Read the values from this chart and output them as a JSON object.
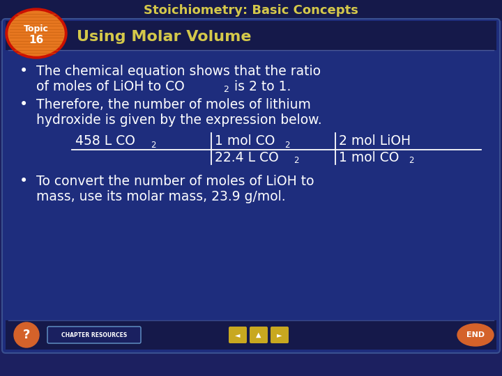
{
  "title": "Stoichiometry: Basic Concepts",
  "subtitle": "Using Molar Volume",
  "topic_number": "16",
  "topic_label": "Topic",
  "bg_outer": "#1c2060",
  "bg_card": "#1e2d7d",
  "title_color": "#d4c84a",
  "subtitle_color": "#d4c84a",
  "text_color": "#ffffff",
  "bullet1_line1": "The chemical equation shows that the ratio",
  "bullet1_line2a": "of moles of LiOH to CO",
  "bullet1_sub": "2",
  "bullet1_line2b": " is 2 to 1.",
  "bullet2_line1": "Therefore, the number of moles of lithium",
  "bullet2_line2": "hydroxide is given by the expression below.",
  "bullet3_line1": "To convert the number of moles of LiOH to",
  "bullet3_line2": "mass, use its molar mass, 23.9 g/mol.",
  "circle_color_outer": "#cc2200",
  "circle_color_inner": "#e87020",
  "circle_stripe": "#d06010",
  "footer_bg": "#15194a",
  "chap_btn_color": "#1a2060",
  "chap_btn_border": "#6699cc",
  "nav_btn_color": "#c8a820",
  "end_btn_color": "#d4622a",
  "q_btn_color": "#d4622a"
}
